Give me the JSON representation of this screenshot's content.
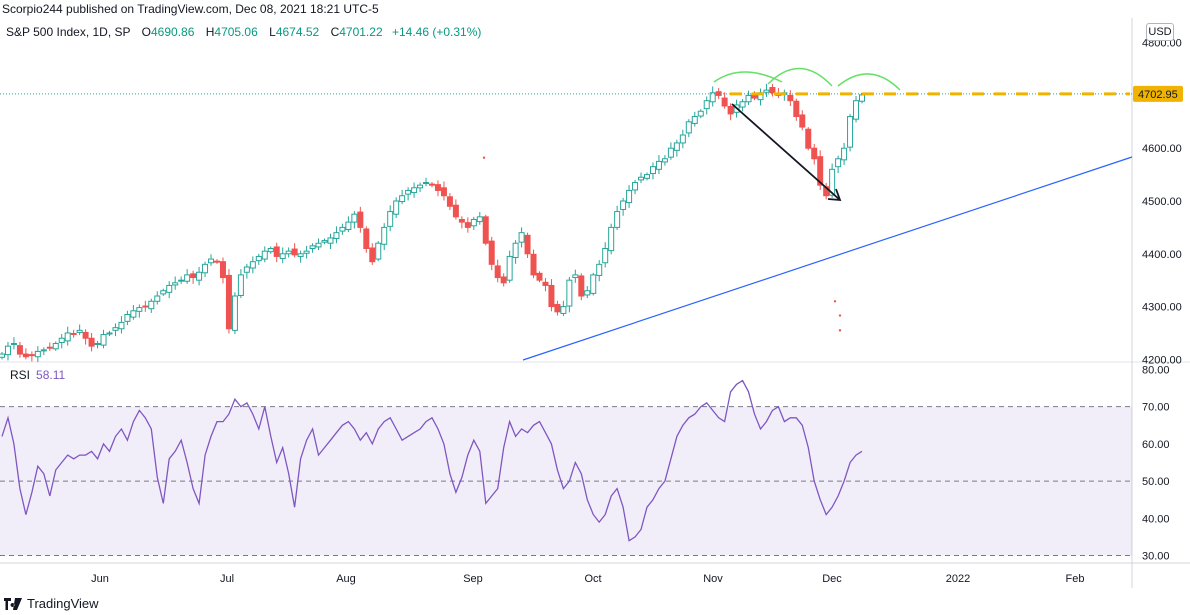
{
  "header": {
    "attribution": "Scorpio244 published on TradingView.com, Dec 08, 2021 18:21 UTC-5"
  },
  "legend": {
    "symbol": "S&P 500 Index, 1D, SP",
    "open_label": "O",
    "open": "4690.86",
    "high_label": "H",
    "high": "4705.06",
    "low_label": "L",
    "low": "4674.52",
    "close_label": "C",
    "close": "4701.22",
    "change": "+14.46 (+0.31%)"
  },
  "currency_button": "USD",
  "rsi_legend": {
    "name": "RSI",
    "value": "58.11"
  },
  "footer": {
    "brand": "TradingView"
  },
  "colors": {
    "up": "#26a69a",
    "down": "#ef5350",
    "rsi": "#7e57c2",
    "trendline": "#2962ff",
    "resistance": "#f0b400",
    "arc": "#66e066",
    "level_line": "#26a69a"
  },
  "chart_data": [
    {
      "type": "candlestick",
      "title": "S&P 500 Index, 1D, SP",
      "x_ticks": [
        "Jun",
        "Jul",
        "Aug",
        "Sep",
        "Oct",
        "Nov",
        "Dec",
        "2022",
        "Feb"
      ],
      "y_ticks": [
        "4200.00",
        "4300.00",
        "4400.00",
        "4500.00",
        "4600.00",
        "4700.00",
        "4800.00"
      ],
      "ylim": [
        4195,
        4805
      ],
      "close_series": [
        4210,
        4225,
        4230,
        4210,
        4205,
        4208,
        4215,
        4218,
        4222,
        4230,
        4240,
        4250,
        4248,
        4255,
        4240,
        4225,
        4230,
        4247,
        4250,
        4260,
        4270,
        4285,
        4292,
        4298,
        4300,
        4310,
        4320,
        4330,
        4340,
        4345,
        4350,
        4360,
        4355,
        4365,
        4380,
        4390,
        4385,
        4355,
        4258,
        4320,
        4360,
        4375,
        4385,
        4395,
        4405,
        4410,
        4395,
        4400,
        4405,
        4398,
        4400,
        4405,
        4415,
        4420,
        4425,
        4430,
        4440,
        4450,
        4460,
        4475,
        4450,
        4410,
        4385,
        4420,
        4450,
        4480,
        4500,
        4510,
        4520,
        4525,
        4530,
        4535,
        4530,
        4520,
        4510,
        4490,
        4470,
        4460,
        4450,
        4465,
        4470,
        4420,
        4380,
        4355,
        4345,
        4395,
        4420,
        4440,
        4400,
        4360,
        4350,
        4340,
        4300,
        4290,
        4300,
        4350,
        4360,
        4320,
        4330,
        4360,
        4380,
        4410,
        4450,
        4480,
        4500,
        4520,
        4535,
        4545,
        4550,
        4565,
        4575,
        4580,
        4600,
        4610,
        4625,
        4650,
        4660,
        4670,
        4690,
        4705,
        4700,
        4680,
        4665,
        4682,
        4688,
        4700,
        4695,
        4705,
        4710,
        4705,
        4700,
        4705,
        4690,
        4660,
        4640,
        4600,
        4580,
        4530,
        4510,
        4560,
        4580,
        4600,
        4660,
        4690,
        4701
      ],
      "horizontal_level": 4702.95,
      "level_label": "4702.95",
      "annotations": [
        "trendline",
        "resistance-line",
        "head-and-shoulders-arcs",
        "arrow"
      ]
    },
    {
      "type": "line",
      "title": "RSI",
      "y_ticks": [
        "30.00",
        "40.00",
        "50.00",
        "60.00",
        "70.00",
        "80.00"
      ],
      "ylim": [
        28,
        82
      ],
      "band": [
        30,
        70
      ],
      "midline": 50,
      "series": [
        {
          "values": [
            62,
            67,
            60,
            48,
            41,
            47,
            54,
            52,
            46,
            53,
            55,
            57,
            56,
            57,
            57,
            58,
            56,
            60,
            58,
            62,
            64,
            61,
            66,
            69,
            67,
            64,
            51,
            44,
            56,
            58,
            61,
            55,
            48,
            44,
            57,
            62,
            66,
            66,
            68,
            72,
            70,
            71,
            68,
            64,
            70,
            62,
            55,
            59,
            52,
            43,
            56,
            61,
            64,
            57,
            59,
            61,
            63,
            65,
            66,
            64,
            61,
            63,
            60,
            64,
            66,
            67,
            64,
            61,
            62,
            63,
            64,
            66,
            67,
            64,
            60,
            52,
            47,
            51,
            57,
            61,
            58,
            44,
            46,
            48,
            59,
            66,
            62,
            64,
            63,
            65,
            66,
            63,
            60,
            53,
            48,
            50,
            55,
            52,
            45,
            41,
            39,
            41,
            46,
            48,
            43,
            34,
            35,
            37,
            43,
            45,
            48,
            50,
            56,
            62,
            65,
            67,
            68,
            70,
            71,
            69,
            67,
            66,
            74,
            76,
            77,
            74,
            68,
            64,
            66,
            69,
            70,
            66,
            67,
            67,
            65,
            59,
            50,
            45,
            41,
            43,
            46,
            50,
            55,
            57,
            58
          ]
        }
      ]
    }
  ]
}
